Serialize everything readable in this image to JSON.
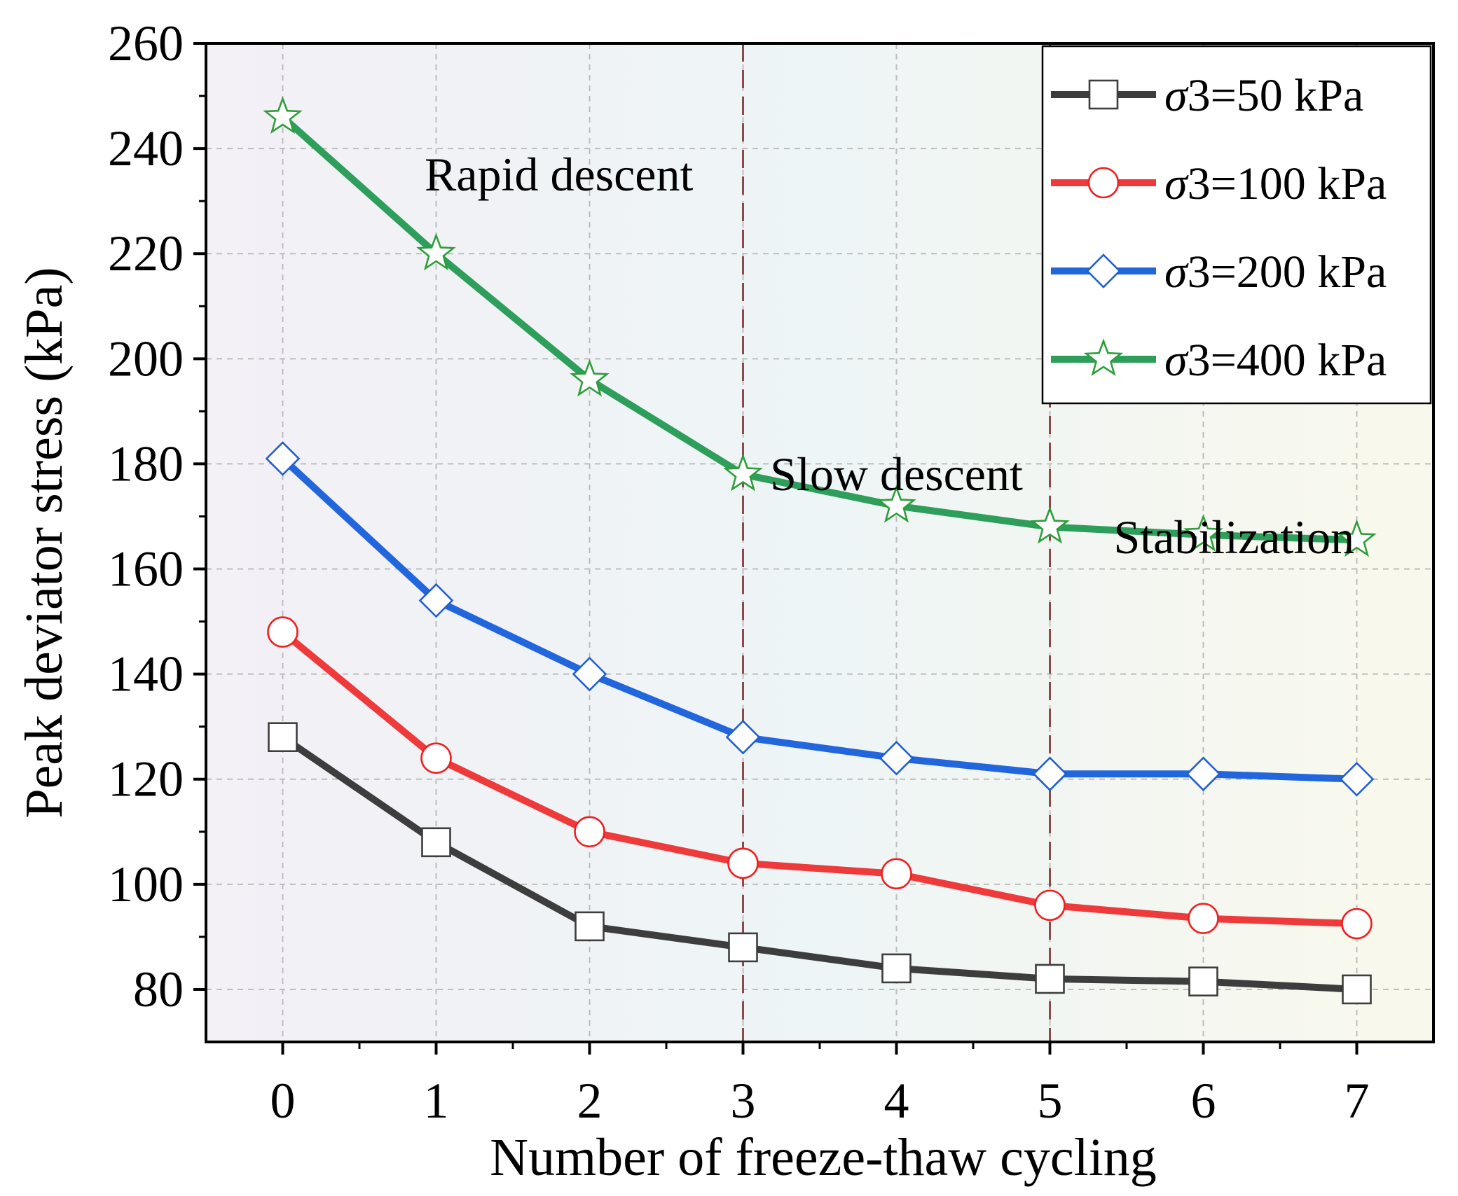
{
  "chart_data": {
    "type": "line",
    "title": "",
    "xlabel": "Number of freeze-thaw cycling",
    "ylabel": "Peak deviator stress (kPa)",
    "x": [
      0,
      1,
      2,
      3,
      4,
      5,
      6,
      7
    ],
    "xlim": [
      -0.5,
      7.5
    ],
    "ylim": [
      70,
      260
    ],
    "xticks": [
      "0",
      "1",
      "2",
      "3",
      "4",
      "5",
      "6",
      "7"
    ],
    "yticks": [
      80,
      100,
      120,
      140,
      160,
      180,
      200,
      220,
      240,
      260
    ],
    "grid": true,
    "legend_position": "top-right",
    "series": [
      {
        "name": "σ3=50 kPa",
        "sym": "σ",
        "sub": "3",
        "rest": "=50 kPa",
        "marker": "square",
        "line_color": "#3d3d3d",
        "marker_color": "#3d3d3d",
        "values": [
          128,
          108,
          92,
          88,
          84,
          82,
          81.5,
          80
        ]
      },
      {
        "name": "σ3=100 kPa",
        "sym": "σ",
        "sub": "3",
        "rest": "=100 kPa",
        "marker": "circle",
        "line_color": "#ee3a3a",
        "marker_color": "#ee2020",
        "values": [
          148,
          124,
          110,
          104,
          102,
          96,
          93.5,
          92.5
        ]
      },
      {
        "name": "σ3=200 kPa",
        "sym": "σ",
        "sub": "3",
        "rest": "=200 kPa",
        "marker": "diamond",
        "line_color": "#2266dd",
        "marker_color": "#1f5fd6",
        "values": [
          181,
          154,
          140,
          128,
          124,
          121,
          121,
          120
        ]
      },
      {
        "name": "σ3=400 kPa",
        "sym": "σ",
        "sub": "3",
        "rest": "=400 kPa",
        "marker": "star",
        "line_color": "#2e9e5b",
        "marker_color": "#2e9e3a",
        "values": [
          246,
          220,
          196,
          178,
          172,
          168,
          166.5,
          165.5
        ]
      }
    ],
    "phase_dividers": [
      3,
      5
    ],
    "annotations": [
      {
        "text": "Rapid descent",
        "x": 1.8,
        "y": 232
      },
      {
        "text": "Slow descent",
        "x": 4.0,
        "y": 175
      },
      {
        "text": "Stabilization",
        "x": 6.2,
        "y": 163
      }
    ]
  }
}
